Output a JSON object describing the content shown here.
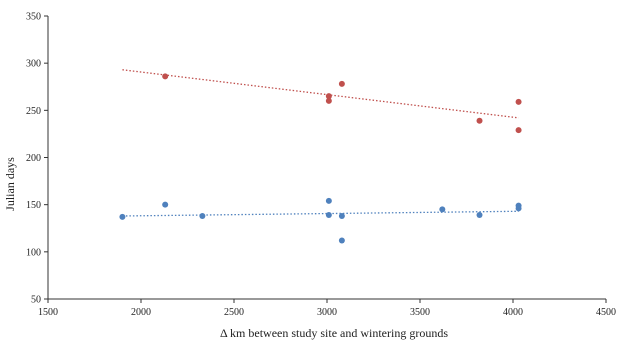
{
  "chart_data": {
    "type": "scatter",
    "xlabel": "Δ km between study site and wintering grounds",
    "ylabel": "Julian days",
    "xlim": [
      1500,
      4500
    ],
    "ylim": [
      50,
      350
    ],
    "xticks": [
      1500,
      2000,
      2500,
      3000,
      3500,
      4000,
      4500
    ],
    "yticks": [
      50,
      100,
      150,
      200,
      250,
      300,
      350
    ],
    "grid": false,
    "legend": "none",
    "series": [
      {
        "color": "#c0504d",
        "points": [
          {
            "x": 2130,
            "y": 286
          },
          {
            "x": 3010,
            "y": 265
          },
          {
            "x": 3010,
            "y": 260
          },
          {
            "x": 3080,
            "y": 278
          },
          {
            "x": 3820,
            "y": 239
          },
          {
            "x": 4030,
            "y": 259
          },
          {
            "x": 4030,
            "y": 229
          }
        ],
        "trendline": {
          "x1": 1900,
          "y1": 293,
          "x2": 4030,
          "y2": 242,
          "style": "dotted"
        }
      },
      {
        "color": "#4f81bd",
        "points": [
          {
            "x": 1900,
            "y": 137
          },
          {
            "x": 2130,
            "y": 150
          },
          {
            "x": 2330,
            "y": 138
          },
          {
            "x": 3010,
            "y": 154
          },
          {
            "x": 3010,
            "y": 139
          },
          {
            "x": 3080,
            "y": 138
          },
          {
            "x": 3080,
            "y": 112
          },
          {
            "x": 3620,
            "y": 145
          },
          {
            "x": 3820,
            "y": 139
          },
          {
            "x": 4030,
            "y": 149
          },
          {
            "x": 4030,
            "y": 146
          }
        ],
        "trendline": {
          "x1": 1900,
          "y1": 138,
          "x2": 4030,
          "y2": 143,
          "style": "dotted"
        }
      }
    ]
  }
}
